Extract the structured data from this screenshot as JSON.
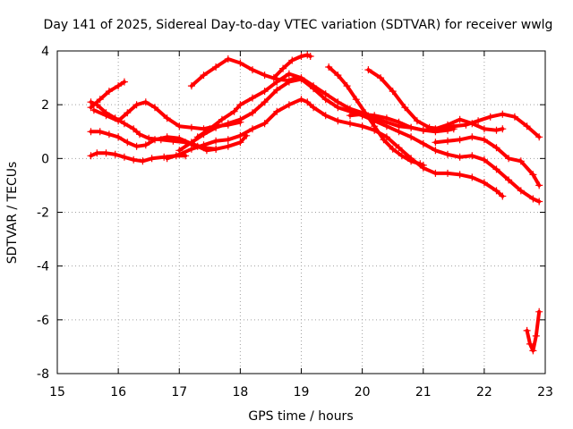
{
  "chart_data": {
    "type": "scatter",
    "title": "Day 141 of 2025, Sidereal Day-to-day VTEC variation (SDTVAR) for receiver wwlg",
    "xlabel": "GPS time / hours",
    "ylabel": "SDTVAR / TECUs",
    "xlim": [
      15,
      23
    ],
    "ylim": [
      -8,
      4
    ],
    "xticks": [
      "15",
      "16",
      "17",
      "18",
      "19",
      "20",
      "21",
      "22",
      "23"
    ],
    "yticks": [
      "-8",
      "-6",
      "-4",
      "-2",
      "0",
      "2",
      "4"
    ],
    "grid": true,
    "marker": "+",
    "color": "#ff0000",
    "series": [
      {
        "name": "s1",
        "x": [
          15.55,
          15.7,
          15.85,
          16.0,
          16.1
        ],
        "y": [
          1.9,
          2.2,
          2.5,
          2.7,
          2.85
        ]
      },
      {
        "name": "s2",
        "x": [
          15.55,
          15.65,
          15.8,
          15.95,
          16.1,
          16.25,
          16.35,
          16.5,
          16.7,
          16.9,
          17.1,
          17.3,
          17.45,
          17.6
        ],
        "y": [
          2.1,
          2.0,
          1.7,
          1.5,
          1.3,
          1.1,
          0.9,
          0.75,
          0.7,
          0.65,
          0.6,
          0.45,
          0.3,
          0.35
        ]
      },
      {
        "name": "s3",
        "x": [
          15.55,
          15.65,
          15.8,
          15.95,
          16.1,
          16.25,
          16.4,
          16.55,
          16.75,
          16.95,
          17.1
        ],
        "y": [
          0.1,
          0.2,
          0.2,
          0.15,
          0.05,
          -0.05,
          -0.1,
          0.0,
          0.05,
          0.1,
          0.1
        ]
      },
      {
        "name": "s4",
        "x": [
          15.55,
          15.7,
          15.85,
          16.0,
          16.15,
          16.3,
          16.45,
          16.6,
          16.8,
          17.0,
          17.2,
          17.4,
          17.6,
          17.8,
          18.0,
          18.1
        ],
        "y": [
          1.0,
          1.0,
          0.9,
          0.8,
          0.6,
          0.45,
          0.5,
          0.7,
          0.8,
          0.75,
          0.55,
          0.4,
          0.35,
          0.45,
          0.6,
          0.85
        ]
      },
      {
        "name": "s5",
        "x": [
          15.6,
          15.8,
          16.0,
          16.15,
          16.3,
          16.45,
          16.6,
          16.8,
          17.0,
          17.2,
          17.4,
          17.6,
          17.8,
          18.0
        ],
        "y": [
          1.8,
          1.6,
          1.4,
          1.7,
          2.0,
          2.1,
          1.9,
          1.5,
          1.2,
          1.15,
          1.1,
          1.2,
          1.25,
          1.35
        ]
      },
      {
        "name": "s6",
        "x": [
          17.2,
          17.4,
          17.6,
          17.8,
          18.0,
          18.2,
          18.4,
          18.6,
          18.8,
          18.9
        ],
        "y": [
          2.7,
          3.1,
          3.4,
          3.7,
          3.55,
          3.3,
          3.1,
          2.95,
          2.9,
          3.0
        ]
      },
      {
        "name": "s7",
        "x": [
          16.8,
          17.0,
          17.2,
          17.4,
          17.6,
          17.8,
          18.0,
          18.2,
          18.4,
          18.6,
          18.8,
          19.0,
          19.1,
          19.2,
          19.4,
          19.6,
          19.8,
          20.0,
          20.2,
          20.4,
          20.6,
          20.8,
          21.0,
          21.2,
          21.4,
          21.6,
          21.8,
          22.0,
          22.2,
          22.3
        ],
        "y": [
          0.0,
          0.15,
          0.35,
          0.5,
          0.65,
          0.7,
          0.85,
          1.1,
          1.3,
          1.75,
          2.0,
          2.2,
          2.1,
          1.9,
          1.6,
          1.4,
          1.3,
          1.2,
          1.05,
          0.8,
          0.4,
          0.0,
          -0.35,
          -0.55,
          -0.55,
          -0.6,
          -0.7,
          -0.9,
          -1.2,
          -1.4
        ]
      },
      {
        "name": "s8",
        "x": [
          17.0,
          17.2,
          17.4,
          17.6,
          17.8,
          18.0,
          18.2,
          18.4,
          18.6,
          18.8,
          19.0,
          19.2,
          19.4,
          19.6,
          19.8,
          20.0,
          20.2,
          20.4,
          20.6,
          20.8,
          21.0,
          21.2,
          21.4,
          21.6,
          21.8,
          22.0,
          22.2,
          22.4,
          22.6,
          22.8,
          22.9
        ],
        "y": [
          0.3,
          0.6,
          0.9,
          1.15,
          1.3,
          1.45,
          1.7,
          2.1,
          2.55,
          2.85,
          2.95,
          2.6,
          2.2,
          1.9,
          1.75,
          1.6,
          1.4,
          1.2,
          1.0,
          0.8,
          0.55,
          0.3,
          0.15,
          0.05,
          0.1,
          -0.05,
          -0.4,
          -0.8,
          -1.2,
          -1.5,
          -1.6
        ]
      },
      {
        "name": "s9",
        "x": [
          17.3,
          17.5,
          17.7,
          17.9,
          18.0,
          18.2,
          18.4,
          18.6,
          18.8,
          19.0,
          19.2,
          19.4,
          19.6,
          19.8,
          20.0,
          20.2,
          20.4,
          20.6,
          20.8,
          21.0,
          21.2,
          21.4,
          21.5
        ],
        "y": [
          0.8,
          1.1,
          1.45,
          1.75,
          2.0,
          2.25,
          2.5,
          2.85,
          3.15,
          3.0,
          2.7,
          2.4,
          2.1,
          1.85,
          1.7,
          1.5,
          1.35,
          1.2,
          1.15,
          1.05,
          1.0,
          1.05,
          1.1
        ]
      },
      {
        "name": "s10",
        "x": [
          18.55,
          18.7,
          18.85,
          19.0,
          19.1,
          19.15
        ],
        "y": [
          3.0,
          3.35,
          3.65,
          3.8,
          3.85,
          3.8
        ]
      },
      {
        "name": "s11",
        "x": [
          19.45,
          19.6,
          19.75,
          19.9,
          20.05,
          20.2,
          20.35,
          20.5,
          20.65,
          20.8,
          20.95,
          21.0
        ],
        "y": [
          3.4,
          3.1,
          2.7,
          2.2,
          1.7,
          1.2,
          0.7,
          0.35,
          0.1,
          -0.1,
          -0.2,
          -0.25
        ]
      },
      {
        "name": "s12",
        "x": [
          20.1,
          20.3,
          20.5,
          20.7,
          20.9,
          21.1,
          21.3,
          21.5,
          21.7,
          21.9,
          22.1,
          22.3,
          22.5,
          22.7,
          22.9
        ],
        "y": [
          3.3,
          3.0,
          2.5,
          1.9,
          1.4,
          1.15,
          1.1,
          1.2,
          1.25,
          1.4,
          1.55,
          1.65,
          1.55,
          1.2,
          0.8
        ]
      },
      {
        "name": "s13",
        "x": [
          19.8,
          20.0,
          20.2,
          20.4,
          20.6,
          20.8,
          21.0,
          21.2,
          21.4,
          21.6,
          21.8,
          22.0,
          22.2,
          22.3
        ],
        "y": [
          1.6,
          1.65,
          1.6,
          1.5,
          1.35,
          1.15,
          1.05,
          1.1,
          1.25,
          1.45,
          1.3,
          1.1,
          1.05,
          1.1
        ]
      },
      {
        "name": "s14",
        "x": [
          21.2,
          21.4,
          21.6,
          21.8,
          22.0,
          22.2,
          22.4,
          22.6,
          22.8,
          22.9
        ],
        "y": [
          0.6,
          0.65,
          0.7,
          0.8,
          0.7,
          0.4,
          0.0,
          -0.1,
          -0.6,
          -1.0
        ]
      },
      {
        "name": "s15",
        "x": [
          22.7,
          22.75,
          22.8,
          22.85,
          22.9
        ],
        "y": [
          -6.4,
          -6.9,
          -7.15,
          -6.6,
          -5.7
        ]
      }
    ]
  }
}
